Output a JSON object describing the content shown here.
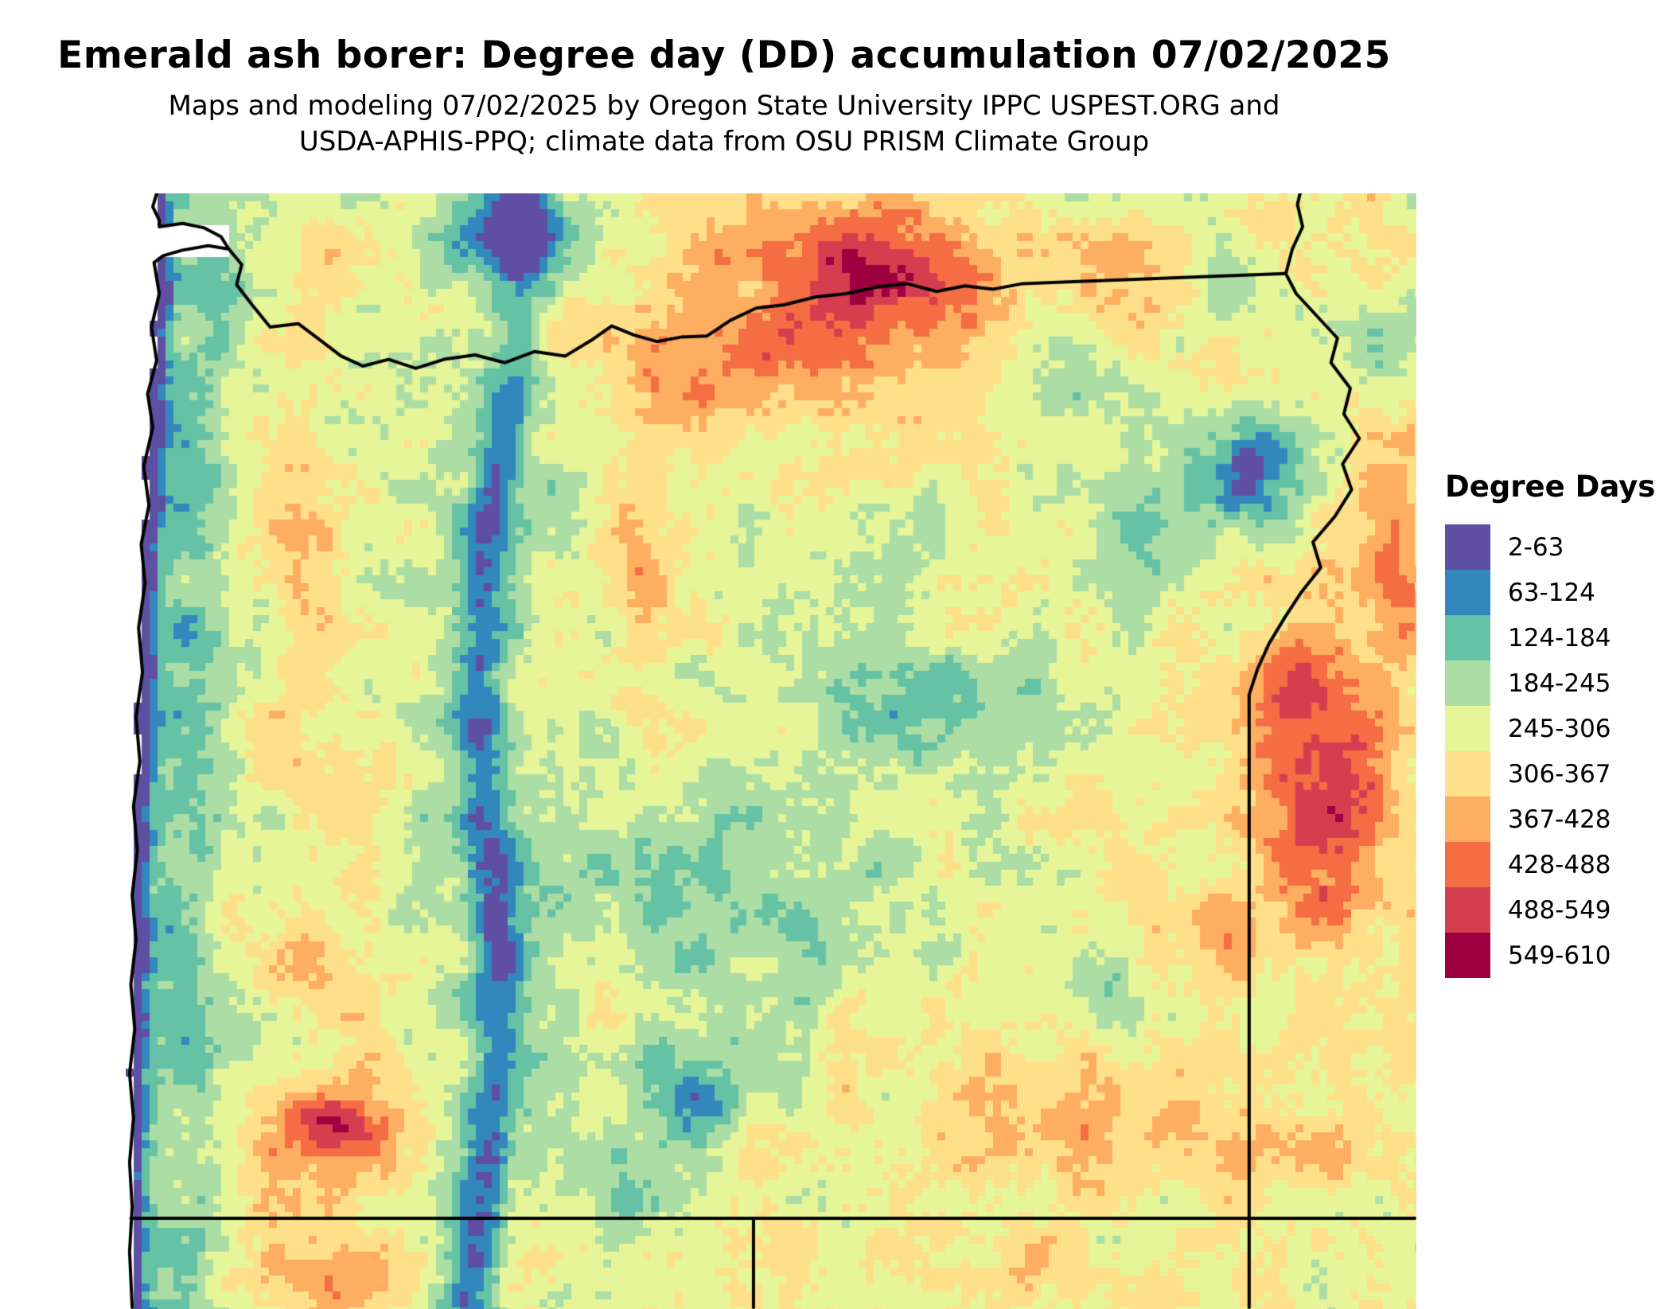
{
  "header": {
    "title": "Emerald ash borer: Degree day (DD) accumulation 07/02/2025",
    "subtitle_line1": "Maps and modeling 07/02/2025 by Oregon State University IPPC USPEST.ORG and",
    "subtitle_line2": "USDA-APHIS-PPQ; climate data from OSU PRISM Climate Group"
  },
  "legend": {
    "title": "Degree Days",
    "thresholds": [
      2,
      63,
      124,
      184,
      245,
      306,
      367,
      428,
      488,
      549,
      610
    ],
    "bins": [
      {
        "label": "2-63",
        "color": "#5e4fa2"
      },
      {
        "label": "63-124",
        "color": "#3288bd"
      },
      {
        "label": "124-184",
        "color": "#66c2a5"
      },
      {
        "label": "184-245",
        "color": "#abdda4"
      },
      {
        "label": "245-306",
        "color": "#e6f598"
      },
      {
        "label": "306-367",
        "color": "#fee08b"
      },
      {
        "label": "367-428",
        "color": "#fdae61"
      },
      {
        "label": "428-488",
        "color": "#f46d43"
      },
      {
        "label": "488-549",
        "color": "#d53e4f"
      },
      {
        "label": "549-610",
        "color": "#9e0142"
      }
    ],
    "border_color": "#000000",
    "ocean_color": "#ffffff"
  }
}
